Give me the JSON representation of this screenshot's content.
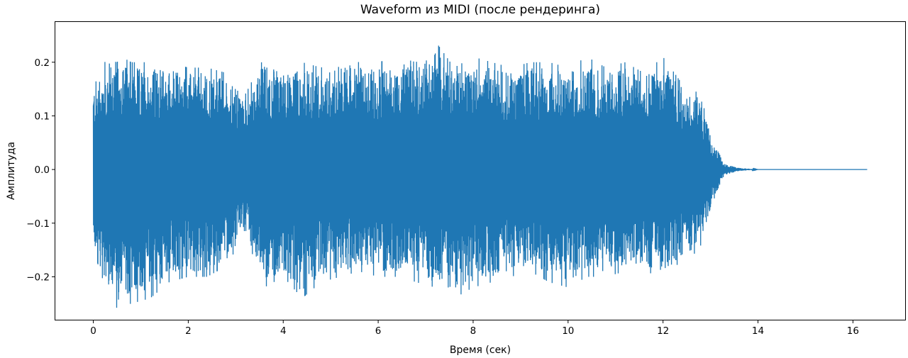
{
  "chart_data": {
    "type": "line",
    "title": "Waveform из MIDI (после рендеринга)",
    "xlabel": "Время (сек)",
    "ylabel": "Амплитуда",
    "xlim": [
      -0.8,
      17.1
    ],
    "ylim": [
      -0.28,
      0.275
    ],
    "x_ticks": [
      0,
      2,
      4,
      6,
      8,
      10,
      12,
      14,
      16
    ],
    "x_tick_labels": [
      "0",
      "2",
      "4",
      "6",
      "8",
      "10",
      "12",
      "14",
      "16"
    ],
    "y_ticks": [
      -0.2,
      -0.1,
      0.0,
      0.1,
      0.2
    ],
    "y_tick_labels": [
      "−0.2",
      "−0.1",
      "0.0",
      "0.1",
      "0.2"
    ],
    "grid": false,
    "color": "#1f77b4",
    "series": [
      {
        "x": [
          0.0,
          0.4,
          0.8,
          1.2,
          1.6,
          2.0,
          2.4,
          2.8,
          3.2,
          3.6,
          4.0,
          4.4,
          4.8,
          5.2,
          5.6,
          6.0,
          6.4,
          6.8,
          7.2,
          7.6,
          8.0,
          8.4,
          8.8,
          9.2,
          9.6,
          10.0,
          10.4,
          10.8,
          11.2,
          11.6,
          12.0,
          12.4,
          12.8,
          13.0,
          13.3,
          13.6,
          14.0,
          16.3
        ],
        "upper_envelope": [
          0.17,
          0.22,
          0.2,
          0.2,
          0.2,
          0.19,
          0.19,
          0.18,
          0.14,
          0.21,
          0.19,
          0.2,
          0.19,
          0.21,
          0.2,
          0.2,
          0.21,
          0.2,
          0.24,
          0.19,
          0.21,
          0.2,
          0.19,
          0.2,
          0.2,
          0.19,
          0.21,
          0.19,
          0.2,
          0.18,
          0.21,
          0.16,
          0.14,
          0.06,
          0.01,
          0.003,
          0.0,
          0.0
        ],
        "lower_envelope": [
          -0.15,
          -0.26,
          -0.25,
          -0.24,
          -0.21,
          -0.2,
          -0.2,
          -0.18,
          -0.12,
          -0.22,
          -0.2,
          -0.24,
          -0.21,
          -0.2,
          -0.19,
          -0.2,
          -0.2,
          -0.21,
          -0.22,
          -0.24,
          -0.22,
          -0.21,
          -0.2,
          -0.19,
          -0.21,
          -0.22,
          -0.2,
          -0.2,
          -0.19,
          -0.19,
          -0.2,
          -0.17,
          -0.15,
          -0.07,
          -0.01,
          -0.003,
          0.0,
          0.0
        ]
      }
    ]
  }
}
